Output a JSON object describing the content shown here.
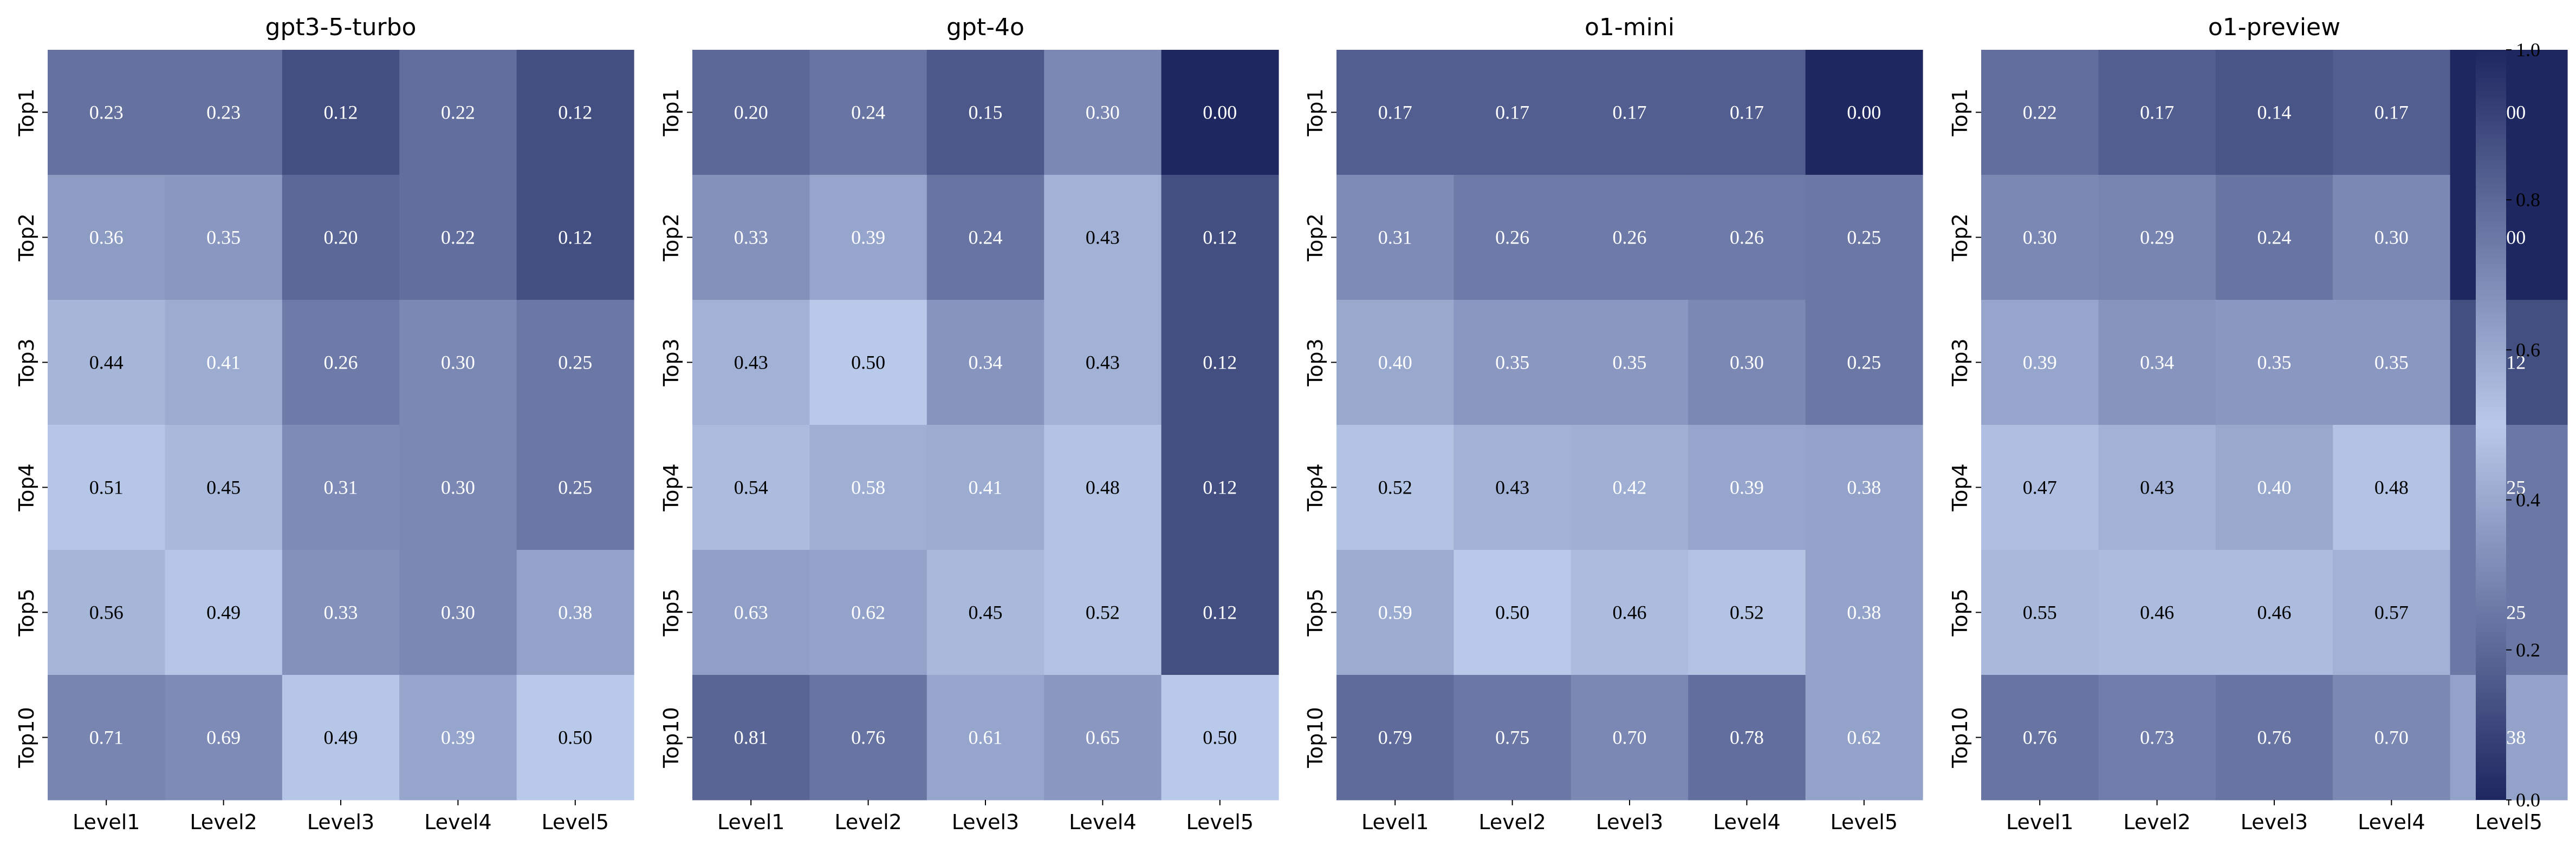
{
  "chart_data": [
    {
      "type": "heatmap",
      "title": "gpt3-5-turbo",
      "x_categories": [
        "Level1",
        "Level2",
        "Level3",
        "Level4",
        "Level5"
      ],
      "y_categories": [
        "Top1",
        "Top2",
        "Top3",
        "Top4",
        "Top5",
        "Top10"
      ],
      "values": [
        [
          0.23,
          0.23,
          0.12,
          0.22,
          0.12
        ],
        [
          0.36,
          0.35,
          0.2,
          0.22,
          0.12
        ],
        [
          0.44,
          0.41,
          0.26,
          0.3,
          0.25
        ],
        [
          0.51,
          0.45,
          0.31,
          0.3,
          0.25
        ],
        [
          0.56,
          0.49,
          0.33,
          0.3,
          0.38
        ],
        [
          0.71,
          0.69,
          0.49,
          0.39,
          0.5
        ]
      ]
    },
    {
      "type": "heatmap",
      "title": "gpt-4o",
      "x_categories": [
        "Level1",
        "Level2",
        "Level3",
        "Level4",
        "Level5"
      ],
      "y_categories": [
        "Top1",
        "Top2",
        "Top3",
        "Top4",
        "Top5",
        "Top10"
      ],
      "values": [
        [
          0.2,
          0.24,
          0.15,
          0.3,
          0.0
        ],
        [
          0.33,
          0.39,
          0.24,
          0.43,
          0.12
        ],
        [
          0.43,
          0.5,
          0.34,
          0.43,
          0.12
        ],
        [
          0.54,
          0.58,
          0.41,
          0.48,
          0.12
        ],
        [
          0.63,
          0.62,
          0.45,
          0.52,
          0.12
        ],
        [
          0.81,
          0.76,
          0.61,
          0.65,
          0.5
        ]
      ]
    },
    {
      "type": "heatmap",
      "title": "o1-mini",
      "x_categories": [
        "Level1",
        "Level2",
        "Level3",
        "Level4",
        "Level5"
      ],
      "y_categories": [
        "Top1",
        "Top2",
        "Top3",
        "Top4",
        "Top5",
        "Top10"
      ],
      "values": [
        [
          0.17,
          0.17,
          0.17,
          0.17,
          0.0
        ],
        [
          0.31,
          0.26,
          0.26,
          0.26,
          0.25
        ],
        [
          0.4,
          0.35,
          0.35,
          0.3,
          0.25
        ],
        [
          0.52,
          0.43,
          0.42,
          0.39,
          0.38
        ],
        [
          0.59,
          0.5,
          0.46,
          0.52,
          0.38
        ],
        [
          0.79,
          0.75,
          0.7,
          0.78,
          0.62
        ]
      ]
    },
    {
      "type": "heatmap",
      "title": "o1-preview",
      "x_categories": [
        "Level1",
        "Level2",
        "Level3",
        "Level4",
        "Level5"
      ],
      "y_categories": [
        "Top1",
        "Top2",
        "Top3",
        "Top4",
        "Top5",
        "Top10"
      ],
      "values": [
        [
          0.22,
          0.17,
          0.14,
          0.17,
          0.0
        ],
        [
          0.3,
          0.29,
          0.24,
          0.3,
          0.0
        ],
        [
          0.39,
          0.34,
          0.35,
          0.35,
          0.12
        ],
        [
          0.47,
          0.43,
          0.4,
          0.48,
          0.25
        ],
        [
          0.55,
          0.46,
          0.46,
          0.57,
          0.25
        ],
        [
          0.76,
          0.73,
          0.76,
          0.7,
          0.38
        ]
      ]
    }
  ],
  "colorbar": {
    "min": 0.0,
    "max": 1.0,
    "ticks": [
      "0.0",
      "0.2",
      "0.4",
      "0.6",
      "0.8",
      "1.0"
    ],
    "colormap_stops": [
      {
        "value": 0.0,
        "color": "#1e2760"
      },
      {
        "value": 0.5,
        "color": "#b8c9ea"
      },
      {
        "value": 1.0,
        "color": "#1e2760"
      }
    ]
  }
}
